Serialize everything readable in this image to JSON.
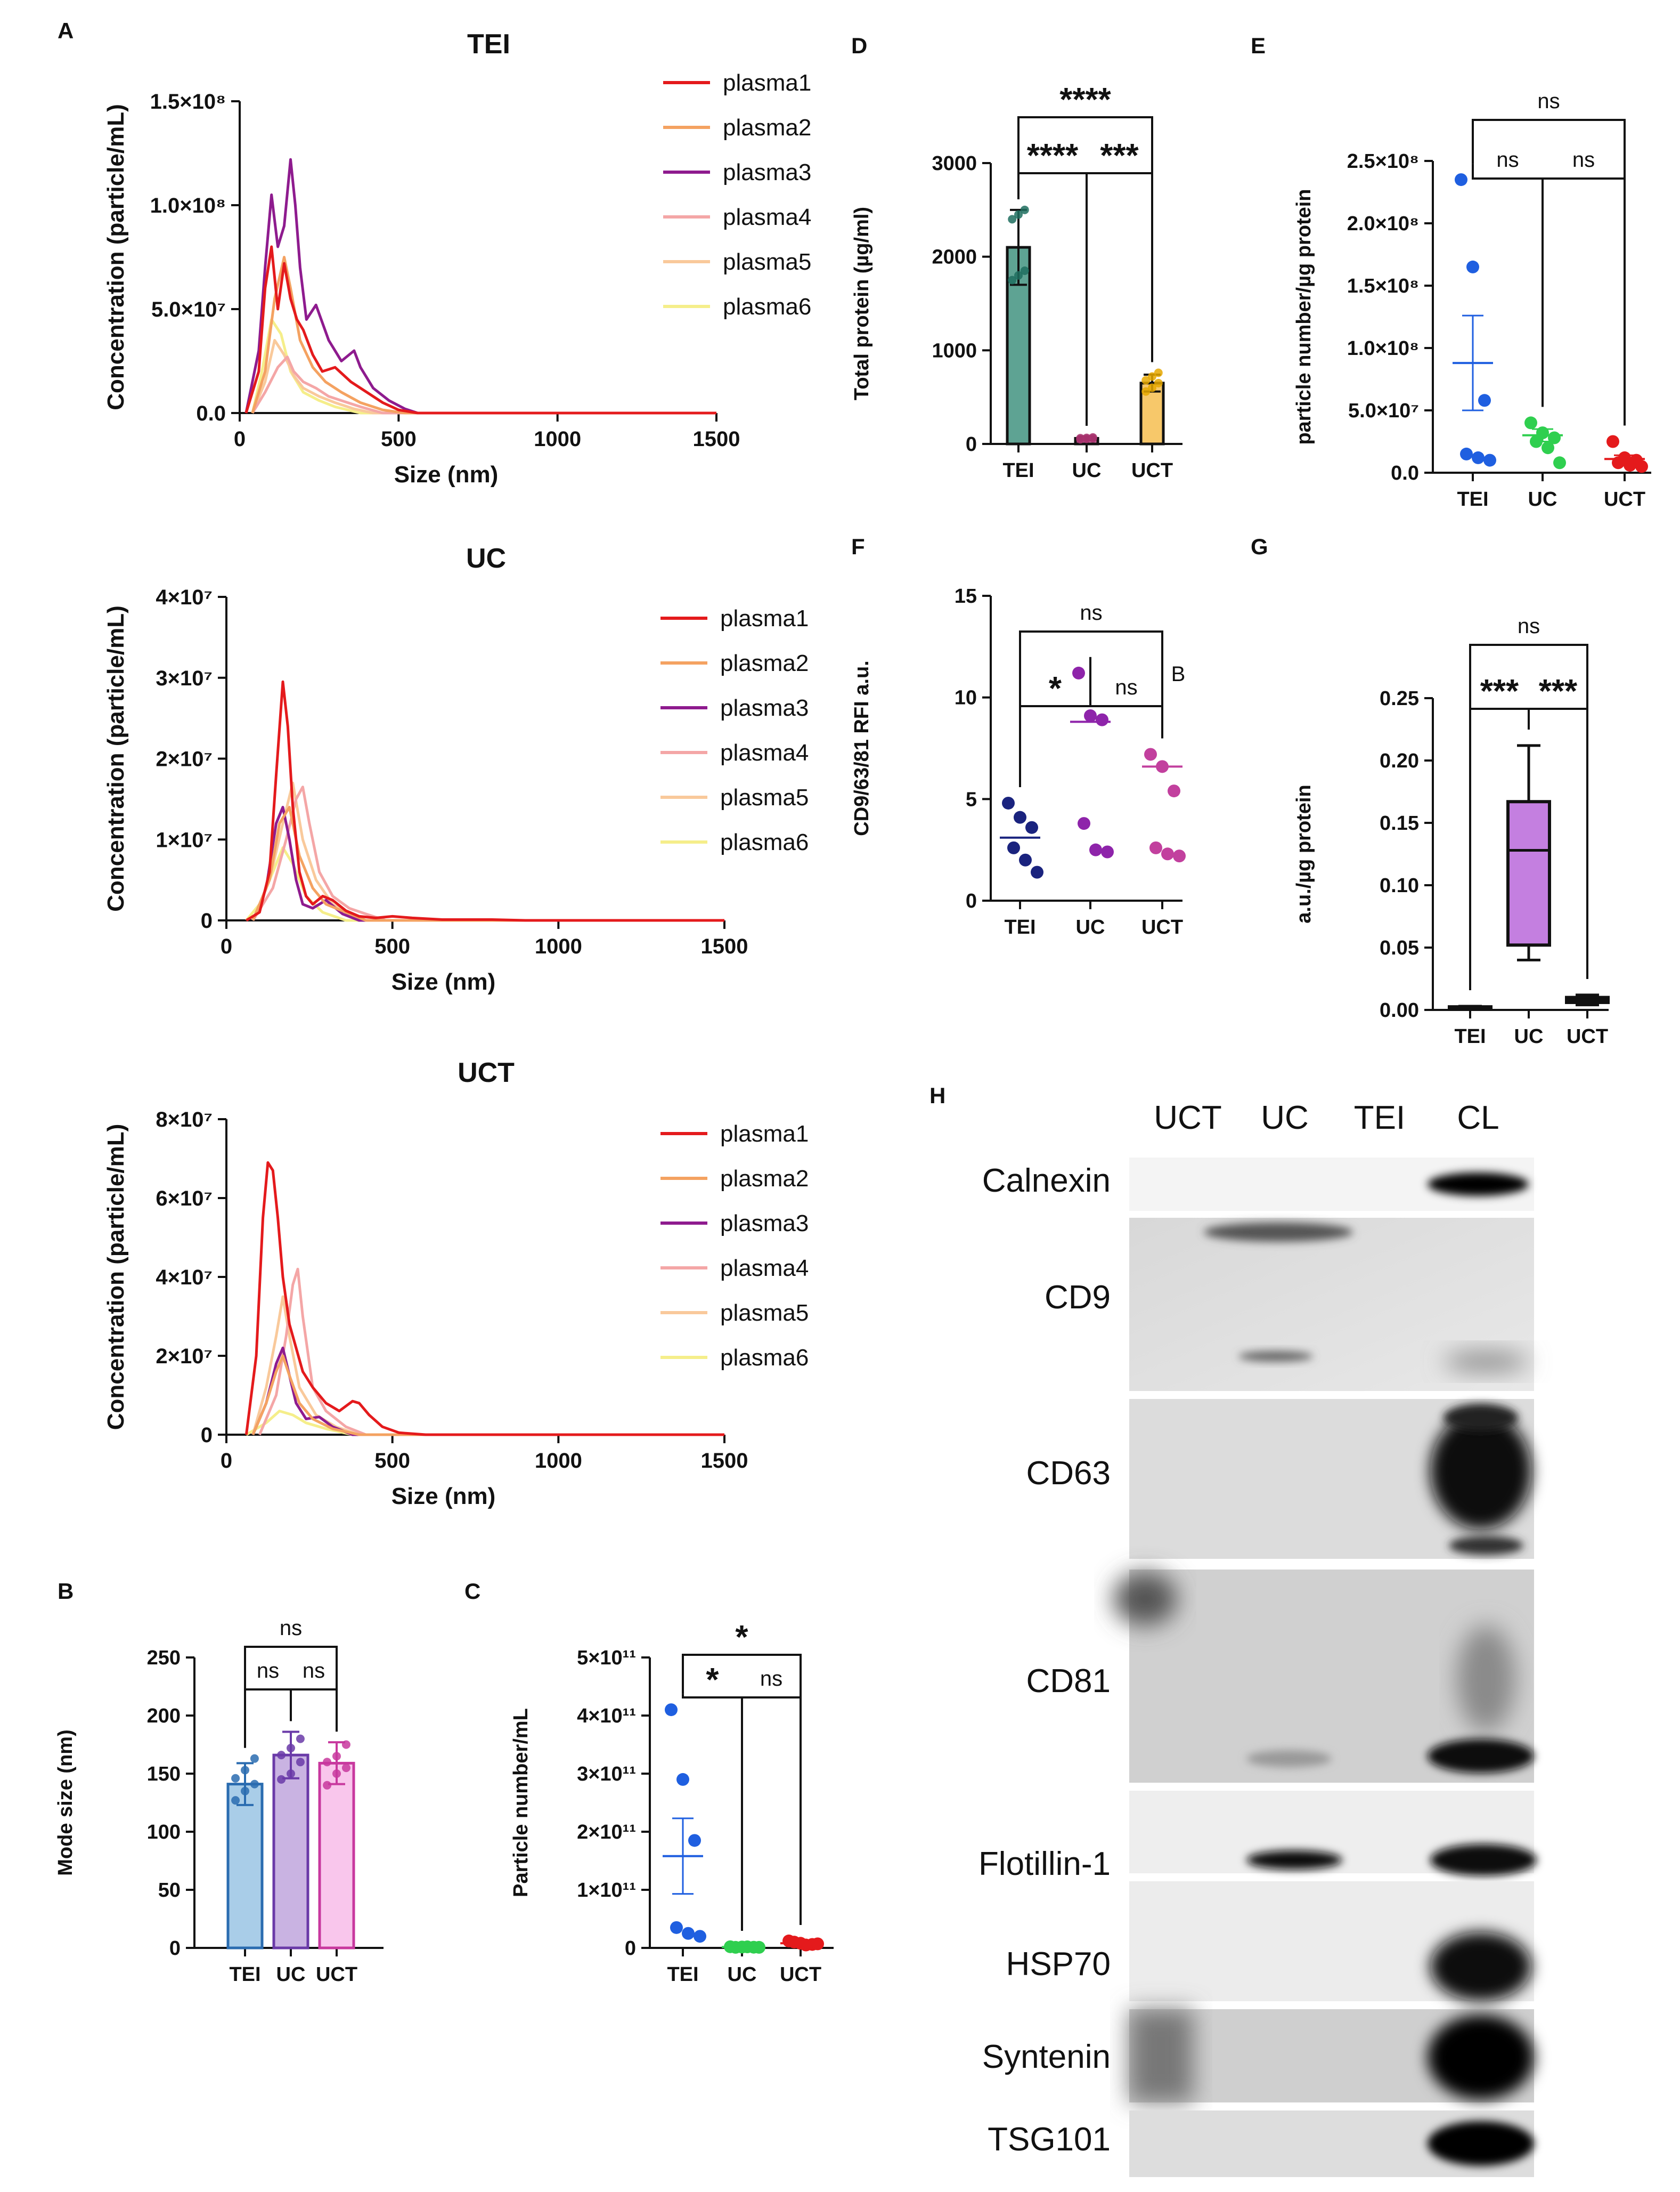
{
  "figure": {
    "panel_labels": [
      "A",
      "B",
      "C",
      "D",
      "E",
      "F",
      "G",
      "H"
    ]
  },
  "nta_legend": [
    "plasma1",
    "plasma2",
    "plasma3",
    "plasma4",
    "plasma5",
    "plasma6"
  ],
  "nta_colors": [
    "#e41a1c",
    "#f4a261",
    "#8e1b8e",
    "#f4a6a6",
    "#f9c99b",
    "#f5ee8a"
  ],
  "nta_xlabel": "Size (nm)",
  "nta_ylabel": "Concentration (particle/mL)",
  "chart_data": [
    {
      "id": "A1",
      "type": "line",
      "title": "TEI",
      "xlabel": "Size (nm)",
      "ylabel": "Concentration (particle/mL)",
      "xlim": [
        0,
        1500
      ],
      "ylim": [
        0,
        150000000
      ],
      "xticks": [
        "0",
        "500",
        "1000",
        "1500"
      ],
      "yticks": [
        "0.0",
        "5.0×10⁷",
        "1.0×10⁸",
        "1.5×10⁸"
      ],
      "series": [
        {
          "name": "plasma1",
          "x": [
            20,
            60,
            80,
            100,
            120,
            140,
            160,
            180,
            200,
            230,
            260,
            300,
            350,
            400,
            450,
            500,
            560
          ],
          "y": [
            0,
            20000000,
            60000000,
            80000000,
            50000000,
            72000000,
            55000000,
            45000000,
            40000000,
            28000000,
            20000000,
            22000000,
            15000000,
            10000000,
            5000000,
            1500000,
            0
          ]
        },
        {
          "name": "plasma2",
          "x": [
            40,
            80,
            110,
            140,
            160,
            190,
            230,
            270,
            320,
            380,
            450,
            520
          ],
          "y": [
            0,
            20000000,
            55000000,
            75000000,
            60000000,
            35000000,
            22000000,
            15000000,
            10000000,
            5000000,
            1500000,
            0
          ]
        },
        {
          "name": "plasma3",
          "x": [
            20,
            60,
            80,
            100,
            120,
            140,
            160,
            175,
            190,
            210,
            240,
            280,
            320,
            360,
            380,
            420,
            470,
            520,
            560
          ],
          "y": [
            0,
            30000000,
            70000000,
            105000000,
            80000000,
            90000000,
            122000000,
            100000000,
            70000000,
            45000000,
            52000000,
            35000000,
            25000000,
            30000000,
            22000000,
            12000000,
            6000000,
            2000000,
            0
          ]
        },
        {
          "name": "plasma4",
          "x": [
            40,
            80,
            120,
            150,
            170,
            200,
            240,
            280,
            320,
            380,
            450
          ],
          "y": [
            0,
            10000000,
            22000000,
            27000000,
            20000000,
            15000000,
            12000000,
            8000000,
            6000000,
            3000000,
            0
          ]
        },
        {
          "name": "plasma5",
          "x": [
            40,
            80,
            110,
            140,
            170,
            200,
            250,
            300,
            360,
            420
          ],
          "y": [
            0,
            15000000,
            35000000,
            28000000,
            18000000,
            12000000,
            8000000,
            5000000,
            2000000,
            0
          ]
        },
        {
          "name": "plasma6",
          "x": [
            40,
            70,
            100,
            130,
            160,
            200,
            250,
            300,
            380
          ],
          "y": [
            0,
            20000000,
            45000000,
            38000000,
            20000000,
            10000000,
            6000000,
            3000000,
            0
          ]
        }
      ]
    },
    {
      "id": "A2",
      "type": "line",
      "title": "UC",
      "xlabel": "Size (nm)",
      "ylabel": "Concentration (particle/mL)",
      "xlim": [
        0,
        1500
      ],
      "ylim": [
        0,
        40000000
      ],
      "xticks": [
        "0",
        "500",
        "1000",
        "1500"
      ],
      "yticks": [
        "0",
        "1×10⁷",
        "2×10⁷",
        "3×10⁷",
        "4×10⁷"
      ],
      "series": [
        {
          "name": "plasma1",
          "x": [
            60,
            100,
            130,
            150,
            170,
            185,
            200,
            220,
            240,
            260,
            290,
            320,
            360,
            400,
            450,
            500,
            560,
            650,
            800,
            900
          ],
          "y": [
            0,
            1000000,
            6000000,
            18000000,
            29500000,
            24000000,
            14000000,
            6000000,
            3000000,
            2000000,
            3000000,
            2500000,
            1200000,
            500000,
            300000,
            500000,
            300000,
            100000,
            100000,
            0
          ]
        },
        {
          "name": "plasma2",
          "x": [
            80,
            130,
            160,
            190,
            220,
            260,
            300,
            360,
            420
          ],
          "y": [
            0,
            5000000,
            12000000,
            14000000,
            8000000,
            4000000,
            2000000,
            1000000,
            0
          ]
        },
        {
          "name": "plasma3",
          "x": [
            80,
            120,
            150,
            170,
            190,
            210,
            230,
            260,
            300,
            350,
            400
          ],
          "y": [
            0,
            4000000,
            12000000,
            14000000,
            10000000,
            5000000,
            2000000,
            1500000,
            2500000,
            800000,
            0
          ]
        },
        {
          "name": "plasma4",
          "x": [
            80,
            140,
            180,
            210,
            230,
            250,
            280,
            320,
            370,
            420,
            480
          ],
          "y": [
            0,
            4000000,
            10000000,
            15000000,
            16500000,
            12000000,
            6000000,
            3000000,
            1500000,
            800000,
            0
          ]
        },
        {
          "name": "plasma5",
          "x": [
            80,
            130,
            170,
            200,
            230,
            270,
            320,
            400
          ],
          "y": [
            0,
            5000000,
            12000000,
            17000000,
            10000000,
            5000000,
            2000000,
            0
          ]
        },
        {
          "name": "plasma6",
          "x": [
            60,
            100,
            140,
            170,
            200,
            240,
            290,
            360
          ],
          "y": [
            0,
            2000000,
            6000000,
            9000000,
            7000000,
            3000000,
            1000000,
            0
          ]
        }
      ]
    },
    {
      "id": "A3",
      "type": "line",
      "title": "UCT",
      "xlabel": "Size (nm)",
      "ylabel": "Concentration (particle/mL)",
      "xlim": [
        0,
        1500
      ],
      "ylim": [
        0,
        80000000
      ],
      "xticks": [
        "0",
        "500",
        "1000",
        "1500"
      ],
      "yticks": [
        "0",
        "2×10⁷",
        "4×10⁷",
        "6×10⁷",
        "8×10⁷"
      ],
      "series": [
        {
          "name": "plasma1",
          "x": [
            60,
            90,
            110,
            125,
            140,
            155,
            170,
            190,
            210,
            230,
            260,
            300,
            340,
            380,
            400,
            430,
            470,
            520,
            600
          ],
          "y": [
            0,
            20000000,
            55000000,
            69000000,
            67000000,
            55000000,
            40000000,
            28000000,
            22000000,
            16000000,
            12000000,
            8000000,
            6000000,
            8500000,
            8000000,
            5000000,
            2000000,
            500000,
            0
          ]
        },
        {
          "name": "plasma2",
          "x": [
            80,
            120,
            150,
            170,
            190,
            220,
            260,
            320,
            400
          ],
          "y": [
            0,
            8000000,
            16000000,
            20000000,
            15000000,
            8000000,
            4000000,
            1500000,
            0
          ]
        },
        {
          "name": "plasma3",
          "x": [
            80,
            120,
            150,
            170,
            190,
            210,
            240,
            280,
            320,
            380
          ],
          "y": [
            0,
            8000000,
            18000000,
            22000000,
            15000000,
            8000000,
            4000000,
            4500000,
            2000000,
            0
          ]
        },
        {
          "name": "plasma4",
          "x": [
            100,
            150,
            180,
            200,
            215,
            230,
            260,
            300,
            360,
            420
          ],
          "y": [
            0,
            10000000,
            25000000,
            38000000,
            42000000,
            30000000,
            12000000,
            6000000,
            2000000,
            0
          ]
        },
        {
          "name": "plasma5",
          "x": [
            80,
            120,
            150,
            170,
            190,
            220,
            270,
            330,
            400
          ],
          "y": [
            0,
            12000000,
            25000000,
            35000000,
            25000000,
            12000000,
            5000000,
            2000000,
            0
          ]
        },
        {
          "name": "plasma6",
          "x": [
            60,
            120,
            160,
            200,
            240,
            300,
            380
          ],
          "y": [
            0,
            3000000,
            6000000,
            5000000,
            3000000,
            1500000,
            0
          ]
        }
      ]
    },
    {
      "id": "B",
      "type": "bar",
      "ylabel": "Mode size (nm)",
      "categories": [
        "TEI",
        "UC",
        "UCT"
      ],
      "ylim": [
        0,
        250
      ],
      "yticks": [
        "0",
        "50",
        "100",
        "150",
        "200",
        "250"
      ],
      "values": [
        141,
        166,
        159
      ],
      "errors": [
        18,
        20,
        18
      ],
      "colors": [
        "#a9cde8",
        "#c9b3e2",
        "#f9c6ec"
      ],
      "edge_colors": [
        "#2a6cb0",
        "#6a3aa8",
        "#c8389e"
      ],
      "points": [
        [
          127,
          135,
          141,
          146,
          153,
          163
        ],
        [
          145,
          150,
          160,
          166,
          172,
          180
        ],
        [
          140,
          150,
          155,
          160,
          165,
          175
        ]
      ],
      "brackets": [
        {
          "from": 0,
          "to": 1,
          "label": "ns"
        },
        {
          "from": 1,
          "to": 2,
          "label": "ns"
        },
        {
          "from": 0,
          "to": 2,
          "label": "ns"
        }
      ]
    },
    {
      "id": "C",
      "type": "scatter",
      "ylabel": "Particle number/mL",
      "categories": [
        "TEI",
        "UC",
        "UCT"
      ],
      "ylim": [
        0,
        500000000000
      ],
      "yticks": [
        "0",
        "1×10¹¹",
        "2×10¹¹",
        "3×10¹¹",
        "4×10¹¹",
        "5×10¹¹"
      ],
      "means": [
        158000000000,
        1500000000,
        8000000000
      ],
      "sems": [
        65000000000,
        500000000,
        2000000000
      ],
      "colors": [
        "#1f5fe0",
        "#2fcf4f",
        "#e41a1c"
      ],
      "points": [
        [
          410000000000,
          290000000000,
          185000000000,
          35000000000,
          25000000000,
          20000000000
        ],
        [
          2000000000,
          1500000000,
          1200000000,
          1000000000,
          1800000000,
          1000000000
        ],
        [
          12000000000,
          8000000000,
          6000000000,
          10000000000,
          5000000000,
          7000000000
        ]
      ],
      "brackets": [
        {
          "from": 0,
          "to": 1,
          "label": "*"
        },
        {
          "from": 1,
          "to": 2,
          "label": "ns"
        },
        {
          "from": 0,
          "to": 2,
          "label": "*"
        }
      ]
    },
    {
      "id": "D",
      "type": "bar",
      "ylabel": "Total protein (µg/ml)",
      "categories": [
        "TEI",
        "UC",
        "UCT"
      ],
      "ylim": [
        0,
        3000
      ],
      "yticks": [
        "0",
        "1000",
        "2000",
        "3000"
      ],
      "values": [
        2100,
        60,
        650
      ],
      "errors": [
        400,
        20,
        90
      ],
      "colors": [
        "#5ea393",
        "#d66a9e",
        "#f7c86a"
      ],
      "edge_colors": [
        "#111111",
        "#111111",
        "#111111"
      ],
      "points": [
        [
          1750,
          1800,
          1850,
          2400,
          2450,
          2500
        ],
        [
          50,
          55,
          60,
          62,
          65,
          70
        ],
        [
          560,
          600,
          650,
          680,
          720,
          760
        ]
      ],
      "point_colors": [
        "#1f6f5f",
        "#a8326e",
        "#e6a800"
      ],
      "brackets": [
        {
          "from": 0,
          "to": 1,
          "label": "****"
        },
        {
          "from": 1,
          "to": 2,
          "label": "***"
        },
        {
          "from": 0,
          "to": 2,
          "label": "****"
        }
      ]
    },
    {
      "id": "E",
      "type": "scatter",
      "ylabel": "particle number/µg protein",
      "categories": [
        "TEI",
        "UC",
        "UCT"
      ],
      "ylim": [
        0,
        250000000
      ],
      "yticks": [
        "0.0",
        "5.0×10⁷",
        "1.0×10⁸",
        "1.5×10⁸",
        "2.0×10⁸",
        "2.5×10⁸"
      ],
      "means": [
        88000000,
        30000000,
        11000000
      ],
      "sems": [
        38000000,
        5000000,
        3000000
      ],
      "colors": [
        "#1f5fe0",
        "#2fcf4f",
        "#e41a1c"
      ],
      "points": [
        [
          235000000,
          165000000,
          58000000,
          15000000,
          12000000,
          10000000
        ],
        [
          40000000,
          32000000,
          28000000,
          25000000,
          20000000,
          8000000
        ],
        [
          25000000,
          12000000,
          10000000,
          8000000,
          6000000,
          5000000
        ]
      ],
      "brackets": [
        {
          "from": 0,
          "to": 1,
          "label": "ns"
        },
        {
          "from": 1,
          "to": 2,
          "label": "ns"
        },
        {
          "from": 0,
          "to": 2,
          "label": "ns"
        }
      ]
    },
    {
      "id": "F",
      "type": "scatter",
      "ylabel": "CD9/63/81 RFI a.u.",
      "categories": [
        "TEI",
        "UC",
        "UCT"
      ],
      "ylim": [
        0,
        15
      ],
      "yticks": [
        "0",
        "5",
        "10",
        "15"
      ],
      "medians": [
        3.1,
        8.8,
        6.6
      ],
      "colors": [
        "#1a237e",
        "#8e24aa",
        "#c2409e"
      ],
      "points": [
        [
          4.8,
          4.1,
          3.6,
          2.6,
          2.0,
          1.4
        ],
        [
          11.2,
          9.1,
          8.9,
          3.8,
          2.5,
          2.4
        ],
        [
          7.2,
          6.6,
          5.4,
          2.6,
          2.3,
          2.2
        ]
      ],
      "annotation": "B",
      "brackets": [
        {
          "from": 0,
          "to": 1,
          "label": "*"
        },
        {
          "from": 1,
          "to": 2,
          "label": "ns"
        },
        {
          "from": 0,
          "to": 2,
          "label": "ns"
        }
      ]
    },
    {
      "id": "G",
      "type": "box",
      "ylabel": "a.u./µg protein",
      "categories": [
        "TEI",
        "UC",
        "UCT"
      ],
      "ylim": [
        0,
        0.25
      ],
      "yticks": [
        "0.00",
        "0.05",
        "0.10",
        "0.15",
        "0.20",
        "0.25"
      ],
      "boxes": [
        {
          "min": 0.001,
          "q1": 0.0015,
          "median": 0.002,
          "q3": 0.0025,
          "max": 0.003,
          "fill": "#ffffff"
        },
        {
          "min": 0.04,
          "q1": 0.052,
          "median": 0.128,
          "q3": 0.167,
          "max": 0.212,
          "fill": "#c47fe0"
        },
        {
          "min": 0.004,
          "q1": 0.006,
          "median": 0.008,
          "q3": 0.01,
          "max": 0.012,
          "fill": "#333333"
        }
      ],
      "brackets": [
        {
          "from": 0,
          "to": 1,
          "label": "***"
        },
        {
          "from": 1,
          "to": 2,
          "label": "***"
        },
        {
          "from": 0,
          "to": 2,
          "label": "ns"
        }
      ]
    }
  ],
  "blot": {
    "lanes": [
      "UCT",
      "UC",
      "TEI",
      "CL"
    ],
    "proteins": [
      "Calnexin",
      "CD9",
      "CD63",
      "CD81",
      "Flotillin-1",
      "HSP70",
      "Syntenin",
      "TSG101"
    ]
  }
}
